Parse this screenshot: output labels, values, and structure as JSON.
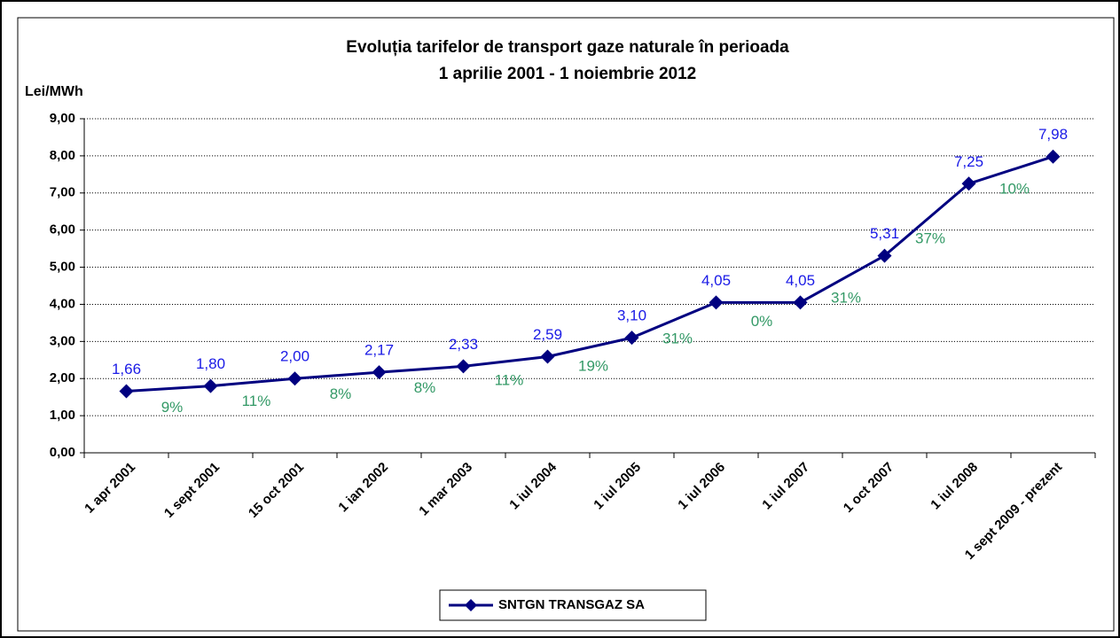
{
  "chart_data": {
    "type": "line",
    "title": [
      "Evoluția tarifelor de transport gaze naturale în perioada",
      "1 aprilie 2001 - 1 noiembrie 2012"
    ],
    "y_label": "Lei/MWh",
    "categories": [
      "1 apr 2001",
      "1 sept 2001",
      "15 oct 2001",
      "1 ian 2002",
      "1 mar 2003",
      "1 iul 2004",
      "1 iul 2005",
      "1 iul 2006",
      "1 iul 2007",
      "1 oct 2007",
      "1 iul 2008",
      "1 sept 2009 - prezent"
    ],
    "series": [
      {
        "name": "SNTGN TRANSGAZ SA",
        "color": "#000080",
        "values": [
          1.66,
          1.8,
          2.0,
          2.17,
          2.33,
          2.59,
          3.1,
          4.05,
          4.05,
          5.31,
          7.25,
          7.98
        ],
        "value_labels": [
          "1,66",
          "1,80",
          "2,00",
          "2,17",
          "2,33",
          "2,59",
          "3,10",
          "4,05",
          "4,05",
          "5,31",
          "7,25",
          "7,98"
        ]
      }
    ],
    "change_labels": [
      "9%",
      "11%",
      "8%",
      "8%",
      "11%",
      "19%",
      "31%",
      "0%",
      "31%",
      "37%",
      "10%"
    ],
    "ylim": [
      0,
      9
    ],
    "yticks": [
      {
        "value": 0,
        "label": "0,00"
      },
      {
        "value": 1,
        "label": "1,00"
      },
      {
        "value": 2,
        "label": "2,00"
      },
      {
        "value": 3,
        "label": "3,00"
      },
      {
        "value": 4,
        "label": "4,00"
      },
      {
        "value": 5,
        "label": "5,00"
      },
      {
        "value": 6,
        "label": "6,00"
      },
      {
        "value": 7,
        "label": "7,00"
      },
      {
        "value": 8,
        "label": "8,00"
      },
      {
        "value": 9,
        "label": "9,00"
      }
    ],
    "grid": true,
    "legend": "bottom"
  }
}
